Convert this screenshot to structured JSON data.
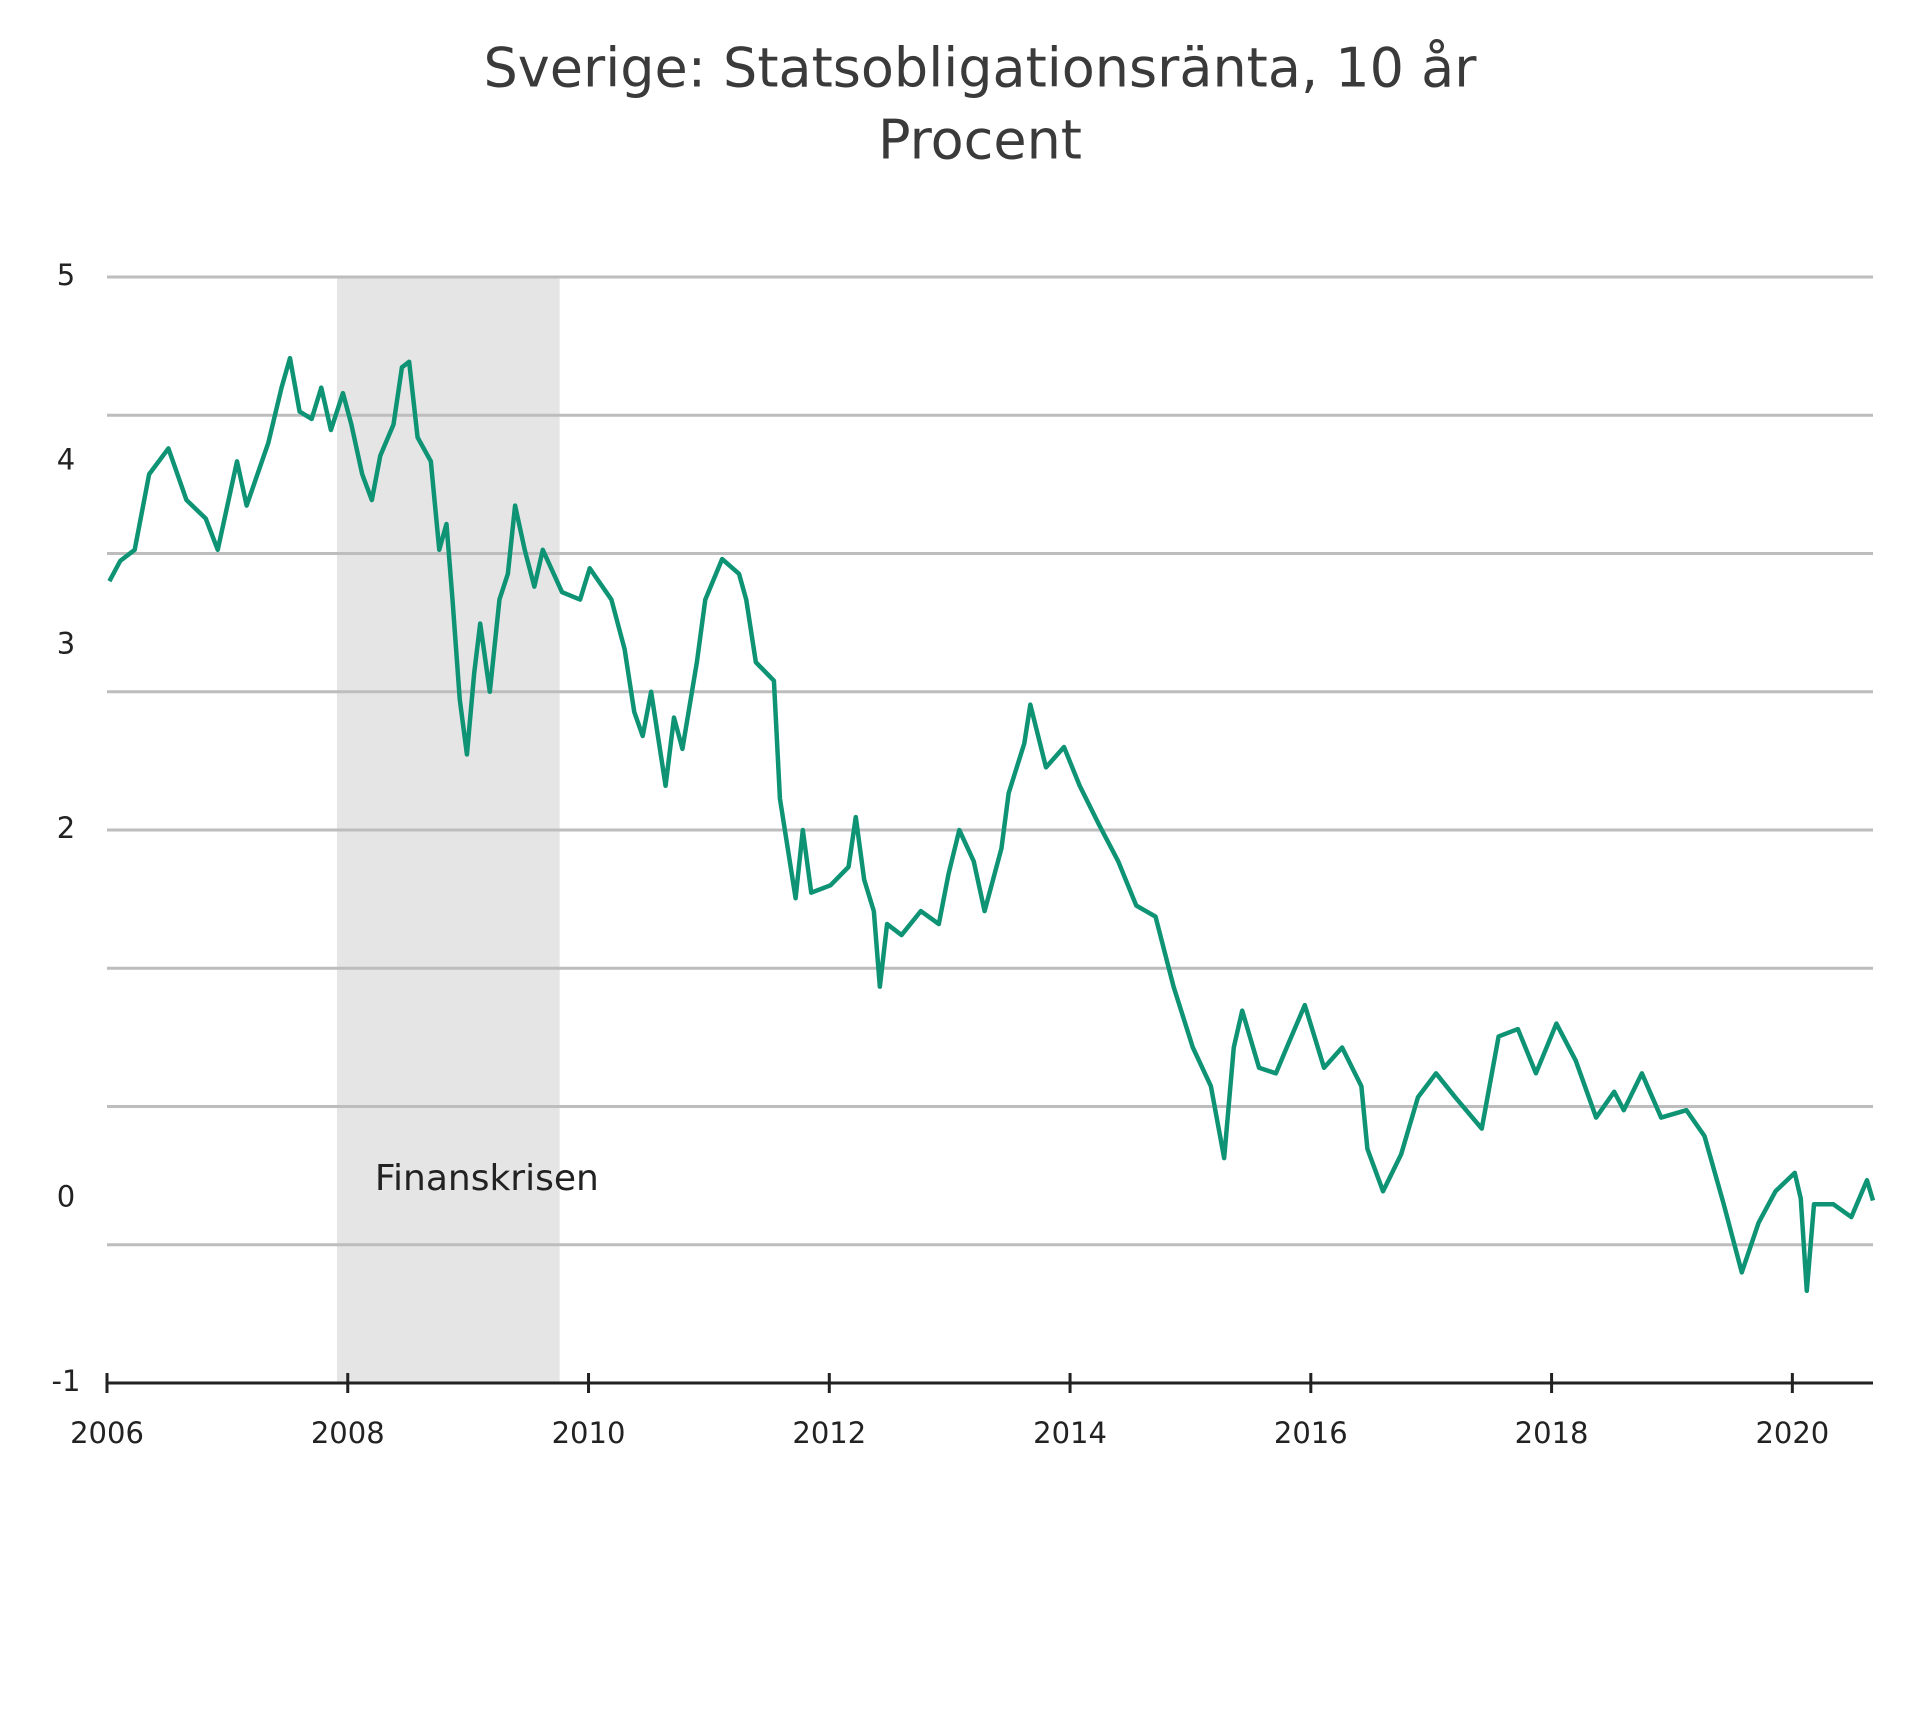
{
  "chart_data": {
    "type": "line",
    "title": "Sverige: Statsobligationsränta, 10 år",
    "subtitle": "Procent",
    "annotation": "Finanskrisen",
    "shaded_x": [
      2007.91,
      2009.76
    ],
    "xlim": [
      2006,
      2020.67
    ],
    "xticks": [
      2006,
      2008,
      2010,
      2012,
      2014,
      2016,
      2018,
      2020
    ],
    "ylim": [
      -1,
      5
    ],
    "yticks": [
      -1,
      0,
      2,
      3,
      4,
      5
    ],
    "ygrid": [
      -0.25,
      0.5,
      1.25,
      2,
      2.75,
      3.5,
      4.25,
      5
    ],
    "grid": true,
    "series": [
      {
        "name": "10 år",
        "color": "#0e9474",
        "x": [
          2006.02,
          2006.11,
          2006.23,
          2006.35,
          2006.51,
          2006.66,
          2006.82,
          2006.92,
          2007.08,
          2007.16,
          2007.34,
          2007.45,
          2007.52,
          2007.6,
          2007.7,
          2007.78,
          2007.86,
          2007.96,
          2008.03,
          2008.12,
          2008.2,
          2008.27,
          2008.38,
          2008.45,
          2008.51,
          2008.58,
          2008.69,
          2008.76,
          2008.82,
          2008.87,
          2008.93,
          2008.99,
          2009.05,
          2009.1,
          2009.18,
          2009.26,
          2009.33,
          2009.39,
          2009.47,
          2009.55,
          2009.62,
          2009.78,
          2009.93,
          2010.01,
          2010.19,
          2010.3,
          2010.38,
          2010.45,
          2010.52,
          2010.64,
          2010.71,
          2010.78,
          2010.9,
          2010.97,
          2011.11,
          2011.25,
          2011.31,
          2011.39,
          2011.54,
          2011.59,
          2011.72,
          2011.78,
          2011.85,
          2012.01,
          2012.16,
          2012.22,
          2012.29,
          2012.37,
          2012.42,
          2012.48,
          2012.6,
          2012.76,
          2012.91,
          2012.99,
          2013.08,
          2013.2,
          2013.29,
          2013.43,
          2013.49,
          2013.62,
          2013.67,
          2013.8,
          2013.95,
          2014.08,
          2014.24,
          2014.4,
          2014.55,
          2014.71,
          2014.86,
          2015.02,
          2015.17,
          2015.28,
          2015.36,
          2015.43,
          2015.57,
          2015.71,
          2015.8,
          2015.95,
          2016.11,
          2016.26,
          2016.42,
          2016.47,
          2016.6,
          2016.75,
          2016.89,
          2017.04,
          2017.2,
          2017.42,
          2017.56,
          2017.72,
          2017.87,
          2018.04,
          2018.2,
          2018.37,
          2018.52,
          2018.6,
          2018.75,
          2018.91,
          2019.12,
          2019.27,
          2019.43,
          2019.58,
          2019.72,
          2019.86,
          2020.02,
          2020.07,
          2020.12,
          2020.18,
          2020.34,
          2020.49,
          2020.62,
          2020.67
        ],
        "values": [
          3.35,
          3.46,
          3.52,
          3.93,
          4.07,
          3.79,
          3.69,
          3.52,
          4.0,
          3.76,
          4.1,
          4.4,
          4.56,
          4.27,
          4.23,
          4.4,
          4.17,
          4.37,
          4.2,
          3.93,
          3.79,
          4.03,
          4.2,
          4.51,
          4.54,
          4.13,
          4.0,
          3.52,
          3.66,
          3.25,
          2.71,
          2.41,
          2.85,
          3.12,
          2.75,
          3.25,
          3.39,
          3.76,
          3.52,
          3.32,
          3.52,
          3.29,
          3.25,
          3.42,
          3.25,
          2.98,
          2.64,
          2.51,
          2.75,
          2.24,
          2.61,
          2.44,
          2.91,
          3.25,
          3.47,
          3.39,
          3.25,
          2.91,
          2.81,
          2.17,
          1.63,
          2.0,
          1.66,
          1.7,
          1.8,
          2.07,
          1.73,
          1.56,
          1.15,
          1.49,
          1.43,
          1.56,
          1.49,
          1.76,
          2.0,
          1.83,
          1.56,
          1.9,
          2.2,
          2.47,
          2.68,
          2.34,
          2.45,
          2.24,
          2.03,
          1.83,
          1.59,
          1.53,
          1.15,
          0.82,
          0.61,
          0.22,
          0.82,
          1.02,
          0.71,
          0.68,
          0.82,
          1.05,
          0.71,
          0.82,
          0.61,
          0.27,
          0.04,
          0.24,
          0.55,
          0.68,
          0.55,
          0.38,
          0.88,
          0.92,
          0.68,
          0.95,
          0.75,
          0.44,
          0.58,
          0.48,
          0.68,
          0.44,
          0.48,
          0.34,
          -0.03,
          -0.4,
          -0.13,
          0.04,
          0.14,
          0.0,
          -0.5,
          -0.03,
          -0.03,
          -0.1,
          0.1,
          -0.01
        ]
      }
    ]
  }
}
